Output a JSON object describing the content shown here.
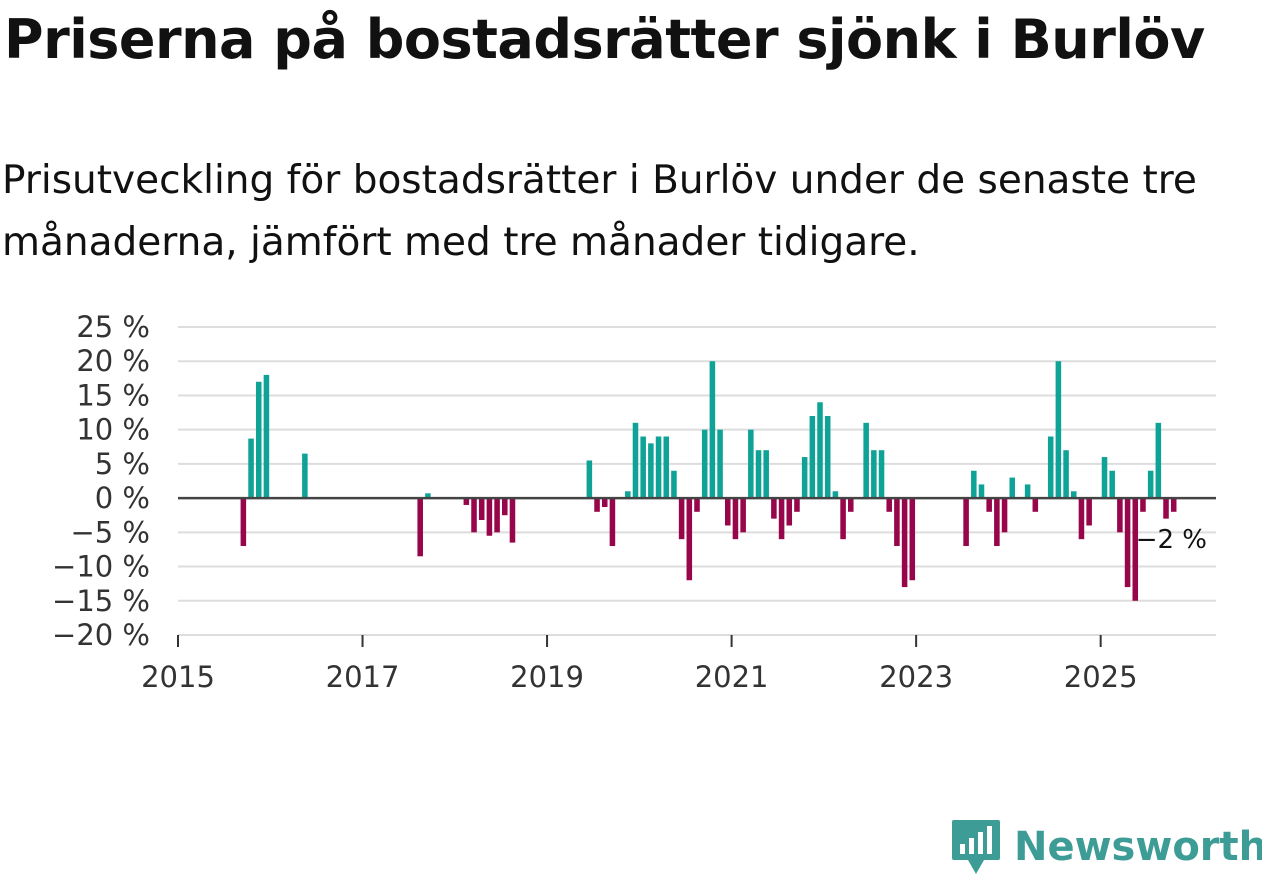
{
  "title": "Priserna på bostadsrätter sjönk i Burlöv",
  "subtitle": "Prisutveckling för bostadsrätter i Burlöv under de senaste tre månaderna, jämfört med tre månader tidigare.",
  "brand": {
    "name": "Newsworthy",
    "color": "#3d9c95"
  },
  "colors": {
    "positive": "#0fa397",
    "negative": "#97054a"
  },
  "chart_data": {
    "type": "bar",
    "title": "Priserna på bostadsrätter sjönk i Burlöv",
    "xlabel": "",
    "ylabel": "",
    "unit": "%",
    "ylim": [
      -20,
      25
    ],
    "yticks": [
      -20,
      -15,
      -10,
      -5,
      0,
      5,
      10,
      15,
      20,
      25
    ],
    "ytick_labels": [
      "−20 %",
      "−15 %",
      "−10 %",
      "−5 %",
      "0 %",
      "5 %",
      "10 %",
      "15 %",
      "20 %",
      "25 %"
    ],
    "xlim": [
      "2015-01",
      "2026-04"
    ],
    "xticks": [
      "2015",
      "2017",
      "2019",
      "2021",
      "2023",
      "2025"
    ],
    "grid": true,
    "end_label": "−2 %",
    "points": [
      {
        "m": "2015-09",
        "v": -7
      },
      {
        "m": "2015-10",
        "v": 8.7
      },
      {
        "m": "2015-11",
        "v": 17
      },
      {
        "m": "2015-12",
        "v": 18
      },
      {
        "m": "2016-05",
        "v": 6.5
      },
      {
        "m": "2017-08",
        "v": -8.5
      },
      {
        "m": "2017-09",
        "v": 0.7
      },
      {
        "m": "2018-02",
        "v": -1
      },
      {
        "m": "2018-03",
        "v": -5
      },
      {
        "m": "2018-04",
        "v": -3.2
      },
      {
        "m": "2018-05",
        "v": -5.5
      },
      {
        "m": "2018-06",
        "v": -5
      },
      {
        "m": "2018-07",
        "v": -2.5
      },
      {
        "m": "2018-08",
        "v": -6.5
      },
      {
        "m": "2019-06",
        "v": 5.5
      },
      {
        "m": "2019-07",
        "v": -2
      },
      {
        "m": "2019-08",
        "v": -1.3
      },
      {
        "m": "2019-09",
        "v": -7
      },
      {
        "m": "2019-11",
        "v": 1
      },
      {
        "m": "2019-12",
        "v": 11
      },
      {
        "m": "2020-01",
        "v": 9
      },
      {
        "m": "2020-02",
        "v": 8
      },
      {
        "m": "2020-03",
        "v": 9
      },
      {
        "m": "2020-04",
        "v": 9
      },
      {
        "m": "2020-05",
        "v": 4
      },
      {
        "m": "2020-06",
        "v": -6
      },
      {
        "m": "2020-07",
        "v": -12
      },
      {
        "m": "2020-08",
        "v": -2
      },
      {
        "m": "2020-09",
        "v": 10
      },
      {
        "m": "2020-10",
        "v": 20
      },
      {
        "m": "2020-11",
        "v": 10
      },
      {
        "m": "2020-12",
        "v": -4
      },
      {
        "m": "2021-01",
        "v": -6
      },
      {
        "m": "2021-02",
        "v": -5
      },
      {
        "m": "2021-03",
        "v": 10
      },
      {
        "m": "2021-04",
        "v": 7
      },
      {
        "m": "2021-05",
        "v": 7
      },
      {
        "m": "2021-06",
        "v": -3
      },
      {
        "m": "2021-07",
        "v": -6
      },
      {
        "m": "2021-08",
        "v": -4
      },
      {
        "m": "2021-09",
        "v": -2
      },
      {
        "m": "2021-10",
        "v": 6
      },
      {
        "m": "2021-11",
        "v": 12
      },
      {
        "m": "2021-12",
        "v": 14
      },
      {
        "m": "2022-01",
        "v": 12
      },
      {
        "m": "2022-02",
        "v": 1
      },
      {
        "m": "2022-03",
        "v": -6
      },
      {
        "m": "2022-04",
        "v": -2
      },
      {
        "m": "2022-06",
        "v": 11
      },
      {
        "m": "2022-07",
        "v": 7
      },
      {
        "m": "2022-08",
        "v": 7
      },
      {
        "m": "2022-09",
        "v": -2
      },
      {
        "m": "2022-10",
        "v": -7
      },
      {
        "m": "2022-11",
        "v": -13
      },
      {
        "m": "2022-12",
        "v": -12
      },
      {
        "m": "2023-07",
        "v": -7
      },
      {
        "m": "2023-08",
        "v": 4
      },
      {
        "m": "2023-09",
        "v": 2
      },
      {
        "m": "2023-10",
        "v": -2
      },
      {
        "m": "2023-11",
        "v": -7
      },
      {
        "m": "2023-12",
        "v": -5
      },
      {
        "m": "2024-01",
        "v": 3
      },
      {
        "m": "2024-03",
        "v": 2
      },
      {
        "m": "2024-04",
        "v": -2
      },
      {
        "m": "2024-06",
        "v": 9
      },
      {
        "m": "2024-07",
        "v": 20
      },
      {
        "m": "2024-08",
        "v": 7
      },
      {
        "m": "2024-09",
        "v": 1
      },
      {
        "m": "2024-10",
        "v": -6
      },
      {
        "m": "2024-11",
        "v": -4
      },
      {
        "m": "2025-01",
        "v": 6
      },
      {
        "m": "2025-02",
        "v": 4
      },
      {
        "m": "2025-03",
        "v": -5
      },
      {
        "m": "2025-04",
        "v": -13
      },
      {
        "m": "2025-05",
        "v": -15
      },
      {
        "m": "2025-06",
        "v": -2
      },
      {
        "m": "2025-07",
        "v": 4
      },
      {
        "m": "2025-08",
        "v": 11
      },
      {
        "m": "2025-09",
        "v": -3
      },
      {
        "m": "2025-10",
        "v": -2
      }
    ]
  }
}
